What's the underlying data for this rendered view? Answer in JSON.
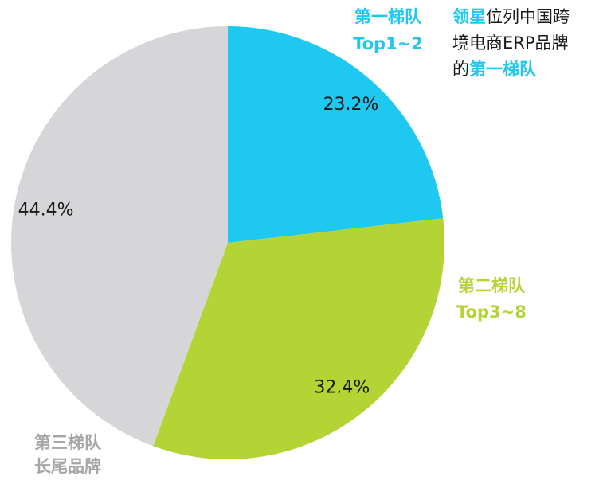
{
  "chart_data": {
    "type": "pie",
    "categories": [
      "第一梯队",
      "第二梯队",
      "第三梯队"
    ],
    "category_sublabels": [
      "Top1~2",
      "Top3~8",
      "长尾品牌"
    ],
    "values": [
      23.2,
      32.4,
      44.4
    ],
    "value_labels": [
      "23.2%",
      "32.4%",
      "44.4%"
    ],
    "colors": [
      "#1fc8f1",
      "#b4d334",
      "#d6d6d8"
    ],
    "label_colors": [
      "#1fc8f1",
      "#b4d334",
      "#a6a6a6"
    ],
    "annotation": {
      "lines": [
        [
          {
            "text": "领星",
            "color": "#1fc8f1"
          },
          {
            "text": "位列中国跨"
          }
        ],
        [
          {
            "text": "境电商ERP品牌"
          }
        ],
        [
          {
            "text": "的"
          },
          {
            "text": "第一梯队",
            "color": "#1fc8f1"
          }
        ]
      ]
    }
  }
}
